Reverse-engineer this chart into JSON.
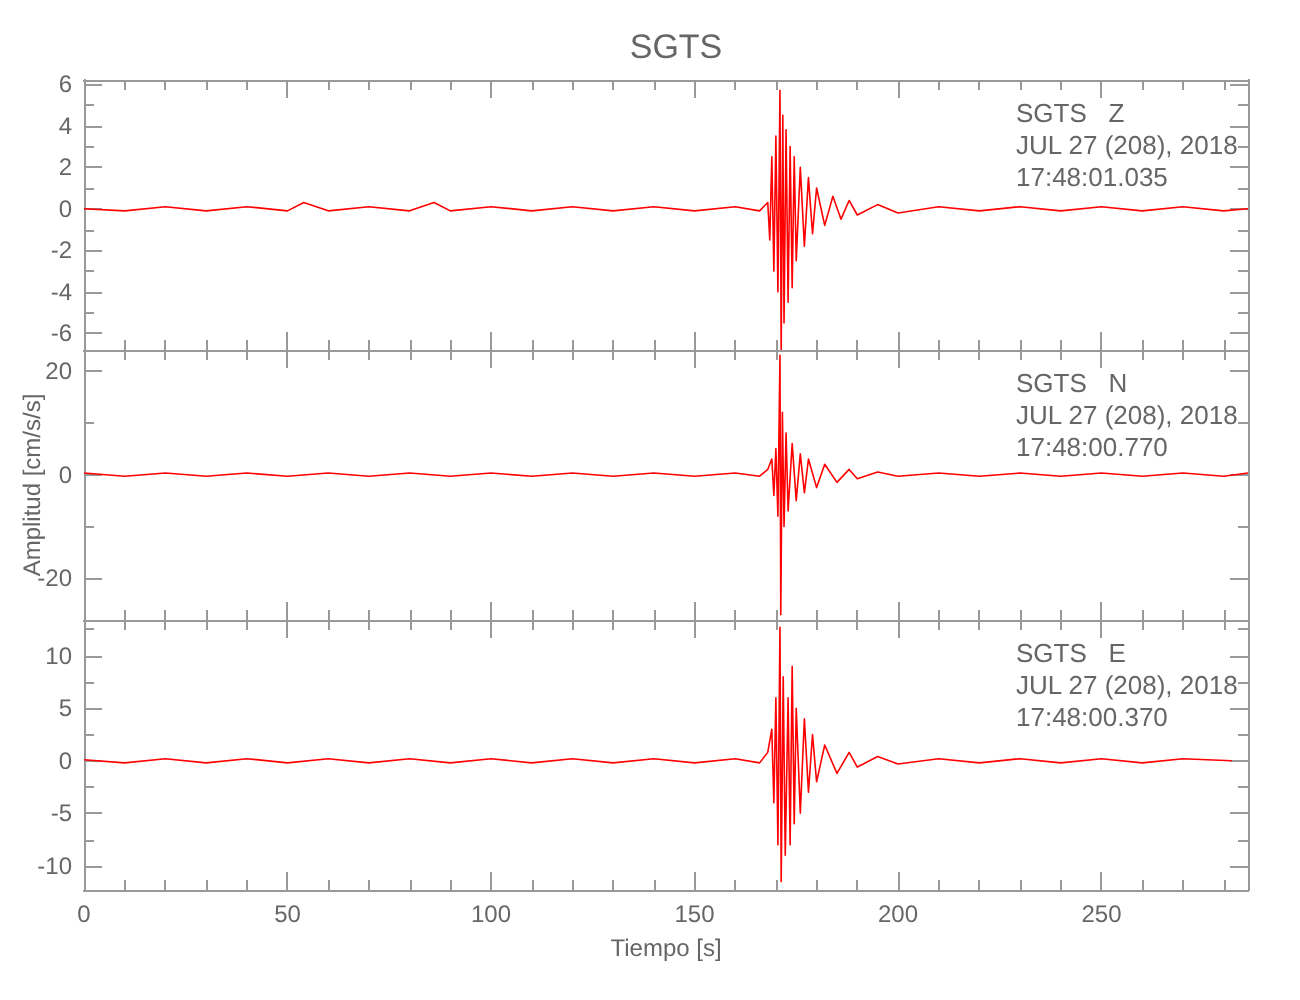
{
  "chart_data": [
    {
      "type": "line",
      "title": "SGTS",
      "annotations": [
        "SGTS   Z",
        "JUL 27 (208), 2018",
        "17:48:01.035"
      ],
      "tick_labels": "y",
      "grid": false,
      "xlim": [
        0,
        286
      ],
      "ylim": [
        -6.8,
        6.2
      ],
      "xticks": [
        0,
        {
          "value": 10,
          "label": null
        },
        {
          "value": 20,
          "label": null
        },
        {
          "value": 30,
          "label": null
        },
        {
          "value": 40,
          "label": null
        },
        50,
        {
          "value": 60,
          "label": null
        },
        {
          "value": 70,
          "label": null
        },
        {
          "value": 80,
          "label": null
        },
        {
          "value": 90,
          "label": null
        },
        100,
        {
          "value": 110,
          "label": null
        },
        {
          "value": 120,
          "label": null
        },
        {
          "value": 130,
          "label": null
        },
        {
          "value": 140,
          "label": null
        },
        150,
        {
          "value": 160,
          "label": null
        },
        {
          "value": 170,
          "label": null
        },
        {
          "value": 180,
          "label": null
        },
        {
          "value": 190,
          "label": null
        },
        200,
        {
          "value": 210,
          "label": null
        },
        {
          "value": 220,
          "label": null
        },
        {
          "value": 230,
          "label": null
        },
        {
          "value": 240,
          "label": null
        },
        250,
        {
          "value": 260,
          "label": null
        },
        {
          "value": 270,
          "label": null
        },
        {
          "value": 280,
          "label": null
        }
      ],
      "yticks": [
        -6,
        {
          "value": -5,
          "label": null
        },
        -4,
        {
          "value": -3,
          "label": null
        },
        -2,
        {
          "value": -1,
          "label": null
        },
        0,
        {
          "value": 1,
          "label": null
        },
        2,
        {
          "value": 3,
          "label": null
        },
        4,
        {
          "value": 5,
          "label": null
        },
        6
      ],
      "series": [
        {
          "color": "#ff0000",
          "x": [
            0,
            10,
            20,
            30,
            40,
            50,
            54,
            60,
            70,
            80,
            86,
            90,
            100,
            110,
            120,
            130,
            140,
            150,
            160,
            166,
            168,
            168.5,
            169,
            169.5,
            170,
            170.5,
            171,
            171.3,
            171.7,
            172,
            172.5,
            173,
            173.5,
            174,
            174.5,
            175,
            176,
            177,
            178,
            179,
            180,
            182,
            184,
            186,
            188,
            190,
            195,
            200,
            210,
            220,
            230,
            240,
            250,
            260,
            270,
            280,
            286
          ],
          "values": [
            0,
            -0.1,
            0.1,
            -0.1,
            0.1,
            -0.1,
            0.3,
            -0.1,
            0.1,
            -0.1,
            0.3,
            -0.1,
            0.1,
            -0.1,
            0.1,
            -0.1,
            0.1,
            -0.1,
            0.1,
            -0.1,
            0.3,
            -1.5,
            2.5,
            -3,
            3.5,
            -4,
            5.7,
            -6.8,
            4.5,
            -5.5,
            3.8,
            -4.5,
            3,
            -3.8,
            2.5,
            -2.5,
            2,
            -1.8,
            1.5,
            -1.2,
            1,
            -0.8,
            0.6,
            -0.5,
            0.4,
            -0.3,
            0.2,
            -0.2,
            0.1,
            -0.1,
            0.1,
            -0.1,
            0.1,
            -0.1,
            0.1,
            -0.1,
            0
          ]
        }
      ]
    },
    {
      "type": "line",
      "ylabel": "Amplitud [cm/s/s]",
      "annotations": [
        "SGTS   N",
        "JUL 27 (208), 2018",
        "17:48:00.770"
      ],
      "tick_labels": "y",
      "grid": false,
      "xlim": [
        0,
        286
      ],
      "ylim": [
        -28,
        24
      ],
      "xticks": [
        0,
        {
          "value": 10,
          "label": null
        },
        {
          "value": 20,
          "label": null
        },
        {
          "value": 30,
          "label": null
        },
        {
          "value": 40,
          "label": null
        },
        50,
        {
          "value": 60,
          "label": null
        },
        {
          "value": 70,
          "label": null
        },
        {
          "value": 80,
          "label": null
        },
        {
          "value": 90,
          "label": null
        },
        100,
        {
          "value": 110,
          "label": null
        },
        {
          "value": 120,
          "label": null
        },
        {
          "value": 130,
          "label": null
        },
        {
          "value": 140,
          "label": null
        },
        150,
        {
          "value": 160,
          "label": null
        },
        {
          "value": 170,
          "label": null
        },
        {
          "value": 180,
          "label": null
        },
        {
          "value": 190,
          "label": null
        },
        200,
        {
          "value": 210,
          "label": null
        },
        {
          "value": 220,
          "label": null
        },
        {
          "value": 230,
          "label": null
        },
        {
          "value": 240,
          "label": null
        },
        250,
        {
          "value": 260,
          "label": null
        },
        {
          "value": 270,
          "label": null
        },
        {
          "value": 280,
          "label": null
        }
      ],
      "yticks": [
        -20,
        {
          "value": -10,
          "label": null
        },
        0,
        {
          "value": 10,
          "label": null
        },
        20
      ],
      "series": [
        {
          "color": "#ff0000",
          "x": [
            0,
            10,
            20,
            30,
            40,
            50,
            60,
            70,
            80,
            90,
            100,
            110,
            120,
            130,
            140,
            150,
            160,
            166,
            168,
            169,
            169.5,
            170,
            170.5,
            171,
            171.2,
            171.6,
            172,
            172.5,
            173,
            174,
            175,
            176,
            177,
            178,
            180,
            182,
            185,
            188,
            190,
            195,
            200,
            210,
            220,
            230,
            240,
            250,
            260,
            270,
            280,
            286
          ],
          "values": [
            0.3,
            -0.3,
            0.3,
            -0.3,
            0.3,
            -0.3,
            0.3,
            -0.3,
            0.3,
            -0.3,
            0.3,
            -0.3,
            0.3,
            -0.3,
            0.3,
            -0.3,
            0.3,
            -0.3,
            1,
            3,
            -4,
            5,
            -8,
            23,
            -27,
            12,
            -10,
            8,
            -7,
            6,
            -5,
            4,
            -3.5,
            3,
            -2.5,
            2,
            -1.5,
            1,
            -0.8,
            0.5,
            -0.3,
            0.3,
            -0.3,
            0.3,
            -0.3,
            0.3,
            -0.3,
            0.3,
            -0.3,
            0.3
          ]
        }
      ]
    },
    {
      "type": "line",
      "xlabel": "Tiempo [s]",
      "annotations": [
        "SGTS   E",
        "JUL 27 (208), 2018",
        "17:48:00.370"
      ],
      "grid": false,
      "xlim": [
        0,
        286
      ],
      "ylim": [
        -12.3,
        13.4
      ],
      "xticks": [
        0,
        {
          "value": 10,
          "label": null
        },
        {
          "value": 20,
          "label": null
        },
        {
          "value": 30,
          "label": null
        },
        {
          "value": 40,
          "label": null
        },
        50,
        {
          "value": 60,
          "label": null
        },
        {
          "value": 70,
          "label": null
        },
        {
          "value": 80,
          "label": null
        },
        {
          "value": 90,
          "label": null
        },
        100,
        {
          "value": 110,
          "label": null
        },
        {
          "value": 120,
          "label": null
        },
        {
          "value": 130,
          "label": null
        },
        {
          "value": 140,
          "label": null
        },
        150,
        {
          "value": 160,
          "label": null
        },
        {
          "value": 170,
          "label": null
        },
        {
          "value": 180,
          "label": null
        },
        {
          "value": 190,
          "label": null
        },
        200,
        {
          "value": 210,
          "label": null
        },
        {
          "value": 220,
          "label": null
        },
        {
          "value": 230,
          "label": null
        },
        {
          "value": 240,
          "label": null
        },
        250,
        {
          "value": 260,
          "label": null
        },
        {
          "value": 270,
          "label": null
        },
        {
          "value": 280,
          "label": null
        }
      ],
      "yticks": [
        -10,
        {
          "value": -7.5,
          "label": null
        },
        -5,
        {
          "value": -2.5,
          "label": null
        },
        0,
        {
          "value": 2.5,
          "label": null
        },
        5,
        {
          "value": 7.5,
          "label": null
        },
        10,
        {
          "value": 12.5,
          "label": null
        }
      ],
      "series": [
        {
          "color": "#ff0000",
          "x": [
            0,
            10,
            20,
            30,
            40,
            50,
            60,
            70,
            80,
            90,
            100,
            110,
            120,
            130,
            140,
            150,
            160,
            166,
            168,
            169,
            169.5,
            170,
            170.5,
            171,
            171.3,
            171.8,
            172.3,
            173,
            173.5,
            174,
            174.5,
            175,
            176,
            177,
            178,
            179,
            180,
            182,
            185,
            188,
            190,
            195,
            200,
            210,
            220,
            230,
            240,
            250,
            260,
            270,
            282
          ],
          "values": [
            0.1,
            -0.2,
            0.2,
            -0.2,
            0.2,
            -0.2,
            0.2,
            -0.2,
            0.2,
            -0.2,
            0.2,
            -0.2,
            0.2,
            -0.2,
            0.2,
            -0.2,
            0.2,
            -0.2,
            0.8,
            3,
            -4,
            6,
            -8,
            12.7,
            -11.5,
            8,
            -9,
            6,
            -8,
            9,
            -6,
            5,
            -5,
            4,
            -3,
            2.5,
            -2,
            1.5,
            -1.2,
            0.8,
            -0.6,
            0.4,
            -0.3,
            0.2,
            -0.2,
            0.2,
            -0.2,
            0.2,
            -0.2,
            0.2,
            0
          ]
        }
      ]
    }
  ]
}
